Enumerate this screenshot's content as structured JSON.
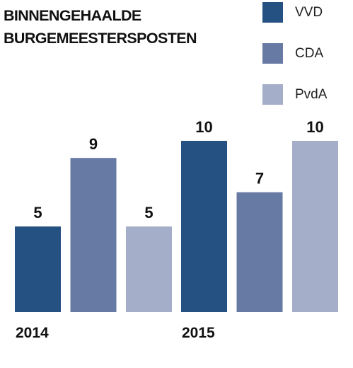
{
  "chart_data": {
    "type": "bar",
    "title_lines": [
      "BINNENGEHAALDE",
      "BURGEMEESTERSPOSTEN"
    ],
    "categories": [
      "2014",
      "2015"
    ],
    "series": [
      {
        "name": "VVD",
        "color": "#245082",
        "values": [
          5,
          10
        ]
      },
      {
        "name": "CDA",
        "color": "#667aa3",
        "values": [
          9,
          7
        ]
      },
      {
        "name": "PvdA",
        "color": "#a4aec9",
        "values": [
          5,
          10
        ]
      }
    ],
    "ylim": [
      0,
      10
    ],
    "grid": false,
    "legend_position": "top-right",
    "data_labels": true
  }
}
